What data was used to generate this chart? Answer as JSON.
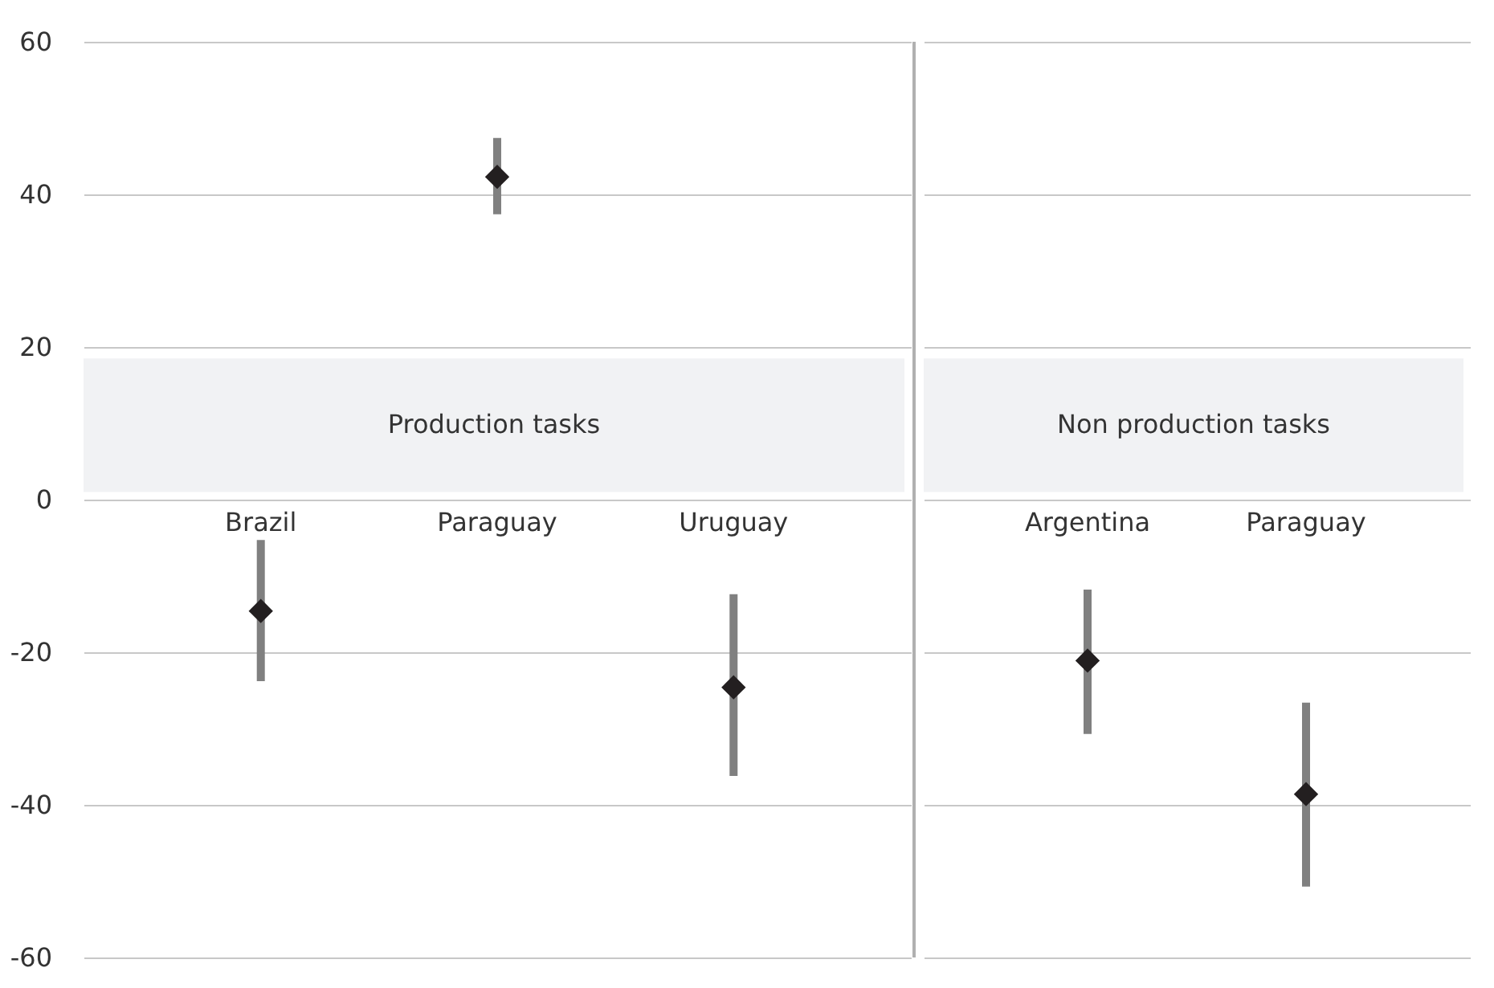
{
  "chart_data": [
    {
      "type": "scatter",
      "categories": [
        "Brazil",
        "Paraguay",
        "Uruguay"
      ],
      "series": [
        {
          "color": "#231f20",
          "values": [
            -14.6,
            42.3,
            -24.6
          ],
          "errors": [
            [
              -23.8,
              -5.3
            ],
            [
              37.4,
              47.4
            ],
            [
              -36.2,
              -12.4
            ]
          ]
        }
      ],
      "ylim": [
        -60,
        60
      ],
      "yticks": [
        -60,
        -40,
        -20,
        0,
        20,
        40,
        60
      ],
      "grid": "y",
      "marker": "diamond",
      "bands": [
        {
          "axis": "y",
          "from": 1,
          "to": 18.5,
          "label": "Production tasks",
          "color": "#f1f2f4"
        }
      ]
    },
    {
      "type": "scatter",
      "categories": [
        "Argentina",
        "Paraguay"
      ],
      "series": [
        {
          "color": "#231f20",
          "values": [
            -21.1,
            -38.6
          ],
          "errors": [
            [
              -30.7,
              -11.8
            ],
            [
              -50.7,
              -26.6
            ]
          ]
        }
      ],
      "ylim": [
        -60,
        60
      ],
      "yticks": [
        -60,
        -40,
        -20,
        0,
        20,
        40,
        60
      ],
      "grid": "y",
      "marker": "diamond",
      "tick_labels": "x",
      "bands": [
        {
          "axis": "y",
          "from": 1,
          "to": 18.5,
          "label": "Non production tasks",
          "color": "#f1f2f4"
        }
      ]
    }
  ]
}
